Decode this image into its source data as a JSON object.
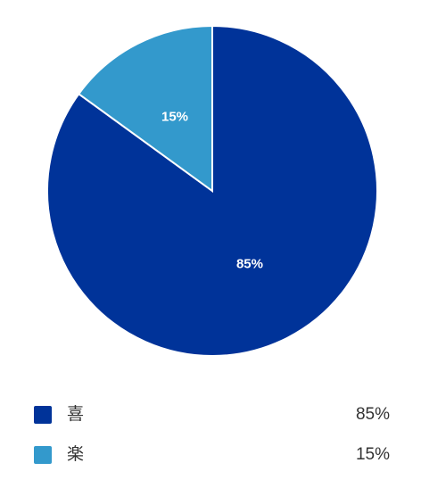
{
  "chart_data": {
    "type": "pie",
    "categories": [
      "喜",
      "楽"
    ],
    "values": [
      85,
      15
    ],
    "value_labels": [
      "85%",
      "15%"
    ],
    "colors": [
      "#003399",
      "#3399cc"
    ]
  }
}
